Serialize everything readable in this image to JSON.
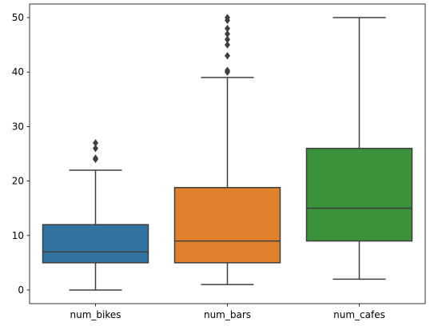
{
  "chart_data": {
    "type": "boxplot",
    "categories": [
      "num_bikes",
      "num_bars",
      "num_cafes"
    ],
    "title": "",
    "xlabel": "",
    "ylabel": "",
    "ylim": [
      -2.5,
      52.5
    ],
    "yticks": [
      0,
      10,
      20,
      30,
      40,
      50
    ],
    "grid": false,
    "legend": "none",
    "boxes": [
      {
        "category": "num_bikes",
        "whisker_low": 0,
        "q1": 5,
        "median": 7,
        "q3": 12,
        "whisker_high": 22,
        "outliers": [
          24,
          24.2,
          26,
          27
        ],
        "color": "#3274a1"
      },
      {
        "category": "num_bars",
        "whisker_low": 1,
        "q1": 5,
        "median": 9,
        "q3": 18.8,
        "whisker_high": 39,
        "outliers": [
          40,
          40.3,
          43,
          45,
          46,
          47,
          48,
          49.5,
          50
        ],
        "color": "#e1812c"
      },
      {
        "category": "num_cafes",
        "whisker_low": 2,
        "q1": 9,
        "median": 15,
        "q3": 26,
        "whisker_high": 50,
        "outliers": [],
        "color": "#3a923a"
      }
    ],
    "line_color": "#3f3f3f"
  }
}
